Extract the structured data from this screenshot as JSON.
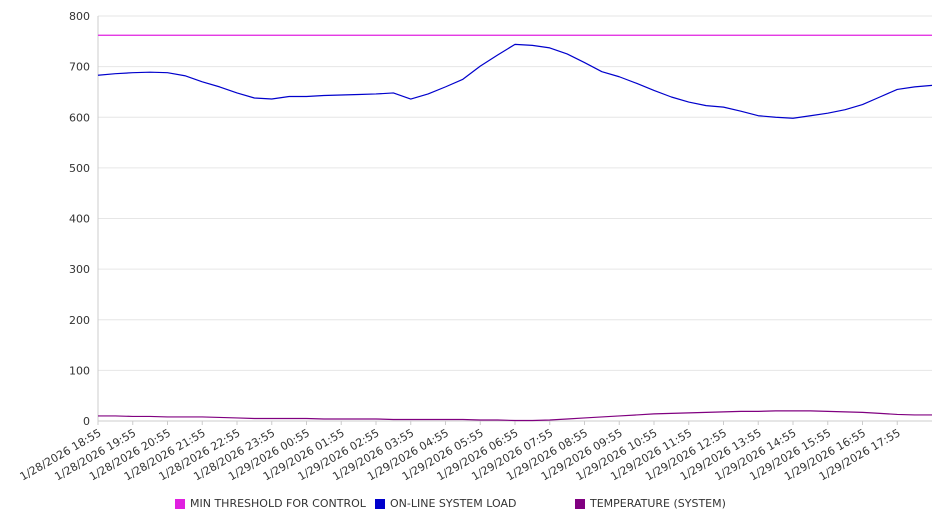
{
  "chart_data": {
    "type": "line",
    "title": "",
    "xlabel": "",
    "ylabel": "",
    "ylim": [
      0,
      800
    ],
    "y_ticks": [
      0,
      100,
      200,
      300,
      400,
      500,
      600,
      700,
      800
    ],
    "grid": true,
    "legend_position": "bottom",
    "x_tick_labels": [
      "1/28/2026 18:55",
      "1/28/2026 19:55",
      "1/28/2026 20:55",
      "1/28/2026 21:55",
      "1/28/2026 22:55",
      "1/28/2026 23:55",
      "1/29/2026 00:55",
      "1/29/2026 01:55",
      "1/29/2026 02:55",
      "1/29/2026 03:55",
      "1/29/2026 04:55",
      "1/29/2026 05:55",
      "1/29/2026 06:55",
      "1/29/2026 07:55",
      "1/29/2026 08:55",
      "1/29/2026 09:55",
      "1/29/2026 10:55",
      "1/29/2026 11:55",
      "1/29/2026 12:55",
      "1/29/2026 13:55",
      "1/29/2026 14:55",
      "1/29/2026 15:55",
      "1/29/2026 16:55",
      "1/29/2026 17:55"
    ],
    "x": [
      "1/28/2026 18:55",
      "1/28/2026 19:25",
      "1/28/2026 19:55",
      "1/28/2026 20:25",
      "1/28/2026 20:55",
      "1/28/2026 21:25",
      "1/28/2026 21:55",
      "1/28/2026 22:25",
      "1/28/2026 22:55",
      "1/28/2026 23:25",
      "1/28/2026 23:55",
      "1/29/2026 00:25",
      "1/29/2026 00:55",
      "1/29/2026 01:25",
      "1/29/2026 01:55",
      "1/29/2026 02:25",
      "1/29/2026 02:55",
      "1/29/2026 03:25",
      "1/29/2026 03:55",
      "1/29/2026 04:25",
      "1/29/2026 04:55",
      "1/29/2026 05:25",
      "1/29/2026 05:55",
      "1/29/2026 06:25",
      "1/29/2026 06:55",
      "1/29/2026 07:25",
      "1/29/2026 07:55",
      "1/29/2026 08:25",
      "1/29/2026 08:55",
      "1/29/2026 09:25",
      "1/29/2026 09:55",
      "1/29/2026 10:25",
      "1/29/2026 10:55",
      "1/29/2026 11:25",
      "1/29/2026 11:55",
      "1/29/2026 12:25",
      "1/29/2026 12:55",
      "1/29/2026 13:25",
      "1/29/2026 13:55",
      "1/29/2026 14:25",
      "1/29/2026 14:55",
      "1/29/2026 15:25",
      "1/29/2026 15:55",
      "1/29/2026 16:25",
      "1/29/2026 16:55",
      "1/29/2026 17:25",
      "1/29/2026 17:55",
      "1/29/2026 18:25",
      "1/29/2026 18:40"
    ],
    "series": [
      {
        "name": "MIN THRESHOLD FOR CONTROL",
        "color": "#e020e0",
        "values": [
          762,
          762,
          762,
          762,
          762,
          762,
          762,
          762,
          762,
          762,
          762,
          762,
          762,
          762,
          762,
          762,
          762,
          762,
          762,
          762,
          762,
          762,
          762,
          762,
          762,
          762,
          762,
          762,
          762,
          762,
          762,
          762,
          762,
          762,
          762,
          762,
          762,
          762,
          762,
          762,
          762,
          762,
          762,
          762,
          762,
          762,
          762,
          762,
          762
        ]
      },
      {
        "name": "ON-LINE SYSTEM LOAD",
        "color": "#0000cc",
        "values": [
          683,
          686,
          688,
          689,
          688,
          682,
          670,
          660,
          648,
          638,
          636,
          641,
          641,
          643,
          644,
          645,
          646,
          648,
          636,
          646,
          660,
          675,
          701,
          723,
          744,
          742,
          737,
          725,
          708,
          690,
          680,
          667,
          653,
          640,
          630,
          623,
          620,
          612,
          603,
          600,
          598,
          603,
          608,
          615,
          625,
          640,
          655,
          660,
          663
        ]
      },
      {
        "name": "TEMPERATURE (SYSTEM)",
        "color": "#800080",
        "values": [
          10,
          10,
          9,
          9,
          8,
          8,
          8,
          7,
          6,
          5,
          5,
          5,
          5,
          4,
          4,
          4,
          4,
          3,
          3,
          3,
          3,
          3,
          2,
          2,
          1,
          1,
          2,
          4,
          6,
          8,
          10,
          12,
          14,
          15,
          16,
          17,
          18,
          19,
          19,
          20,
          20,
          20,
          19,
          18,
          17,
          15,
          13,
          12,
          12
        ]
      }
    ]
  }
}
